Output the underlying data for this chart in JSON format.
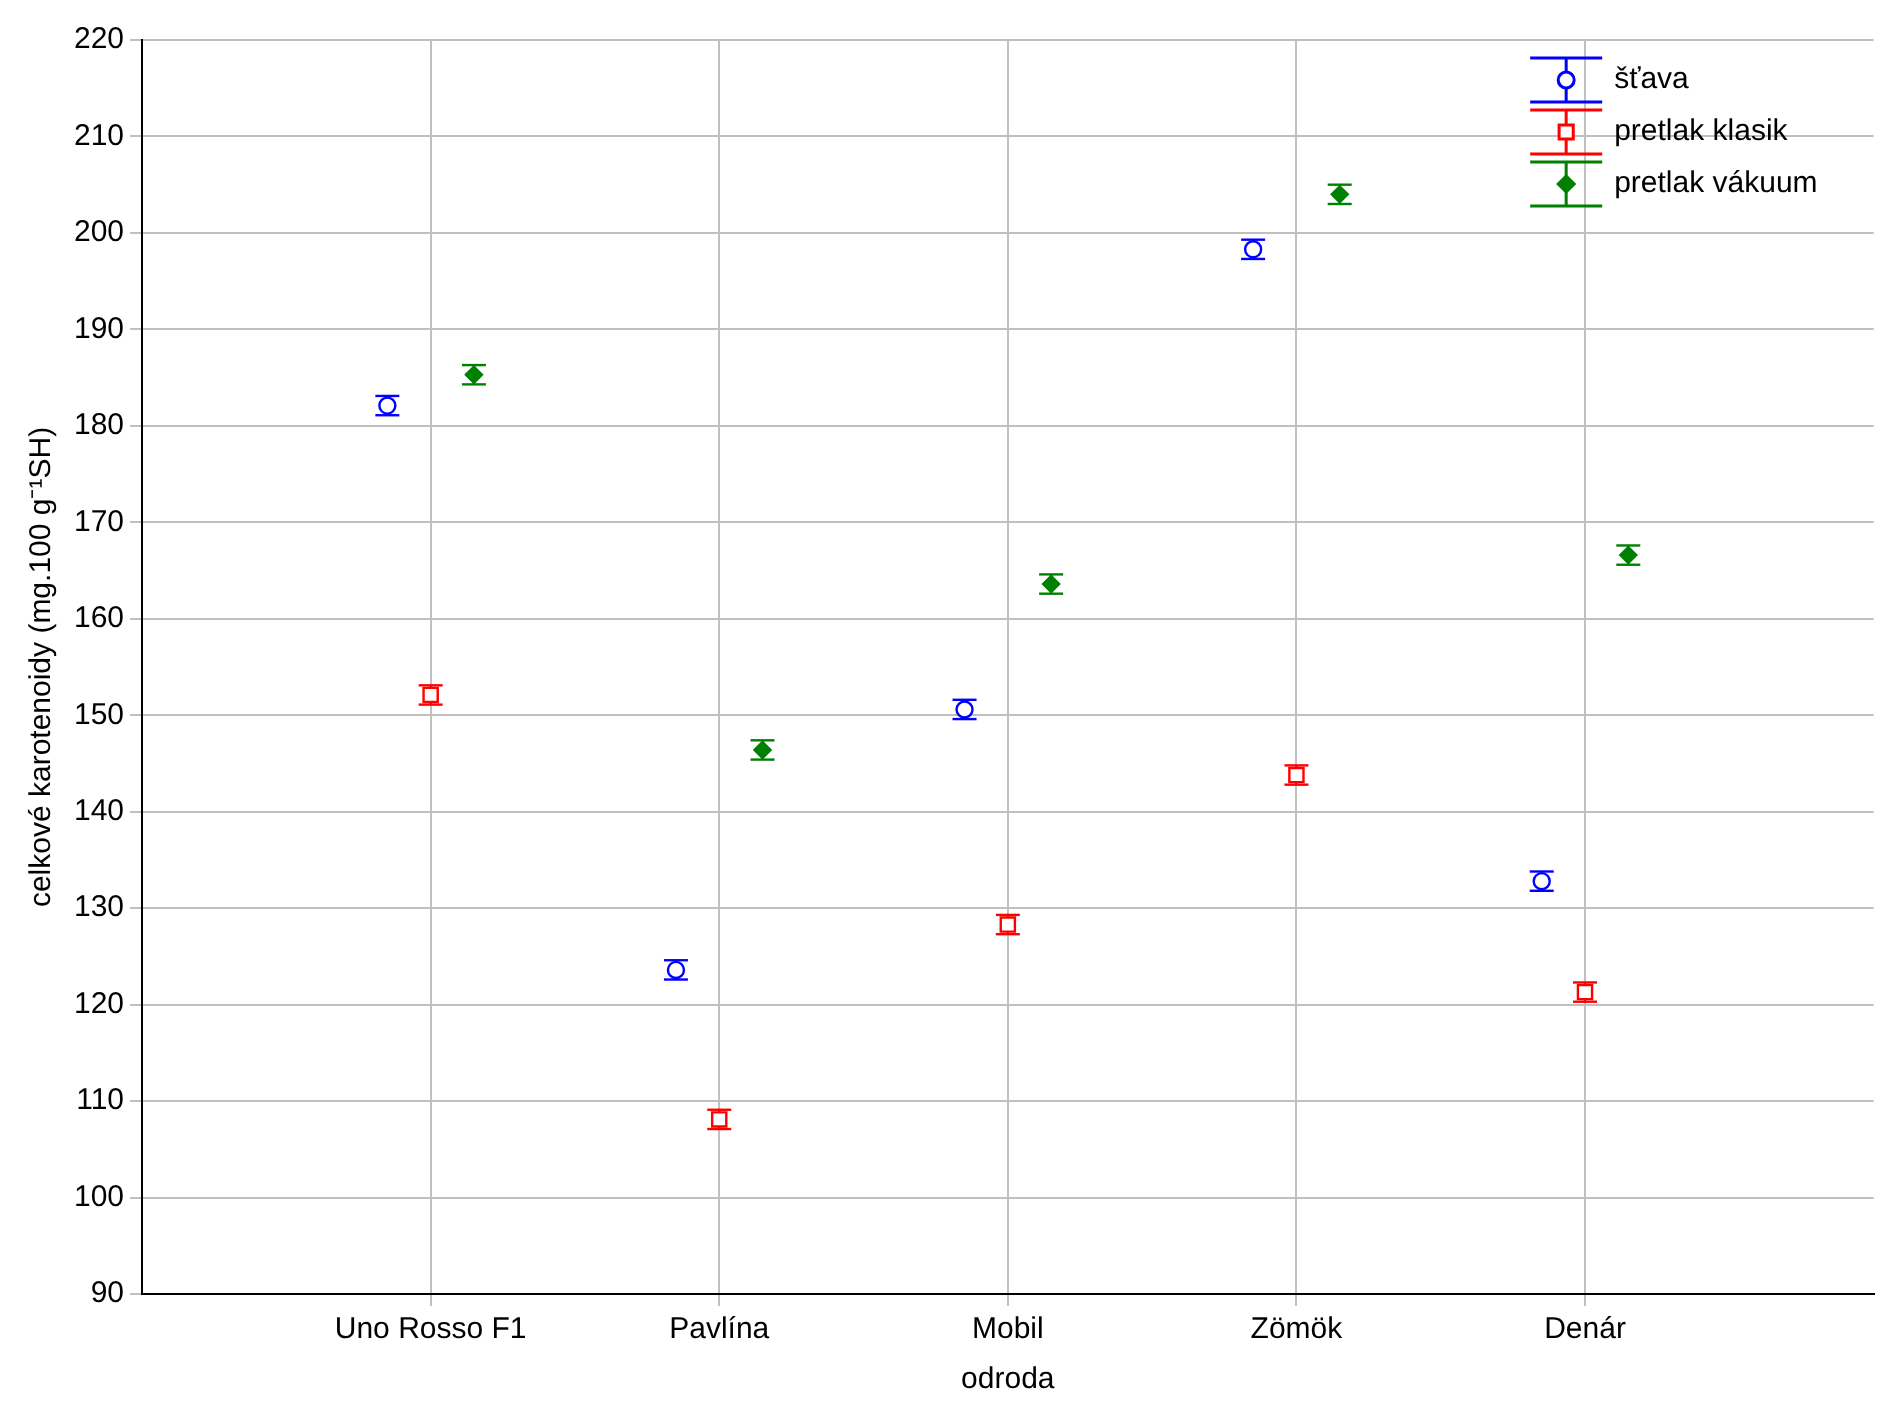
{
  "chart_data": {
    "type": "scatter",
    "xlabel": "odroda",
    "ylabel": "celkové karotenoidy (mg.100 g⁻¹SH)",
    "categories": [
      "Uno Rosso F1",
      "Pavlína",
      "Mobil",
      "Zömök",
      "Denár"
    ],
    "ylim": [
      90,
      220
    ],
    "yticks": [
      90,
      100,
      110,
      120,
      130,
      140,
      150,
      160,
      170,
      180,
      190,
      200,
      210,
      220
    ],
    "grid": true,
    "legend": "top right",
    "series": [
      {
        "name": "šťava",
        "color": "#0000ff",
        "marker": "circle",
        "values": [
          182.1,
          123.6,
          150.6,
          198.3,
          132.8
        ],
        "errors": [
          1,
          1,
          1,
          1,
          1
        ]
      },
      {
        "name": "pretlak klasik",
        "color": "#ff0000",
        "marker": "square",
        "values": [
          152.1,
          108.1,
          128.3,
          143.8,
          121.3
        ],
        "errors": [
          1,
          1,
          1,
          1,
          1
        ]
      },
      {
        "name": "pretlak vákuum",
        "color": "#008000",
        "marker": "diamond",
        "values": [
          185.3,
          146.4,
          163.6,
          204.0,
          166.6
        ],
        "errors": [
          1,
          1,
          1,
          1,
          1
        ]
      }
    ]
  }
}
